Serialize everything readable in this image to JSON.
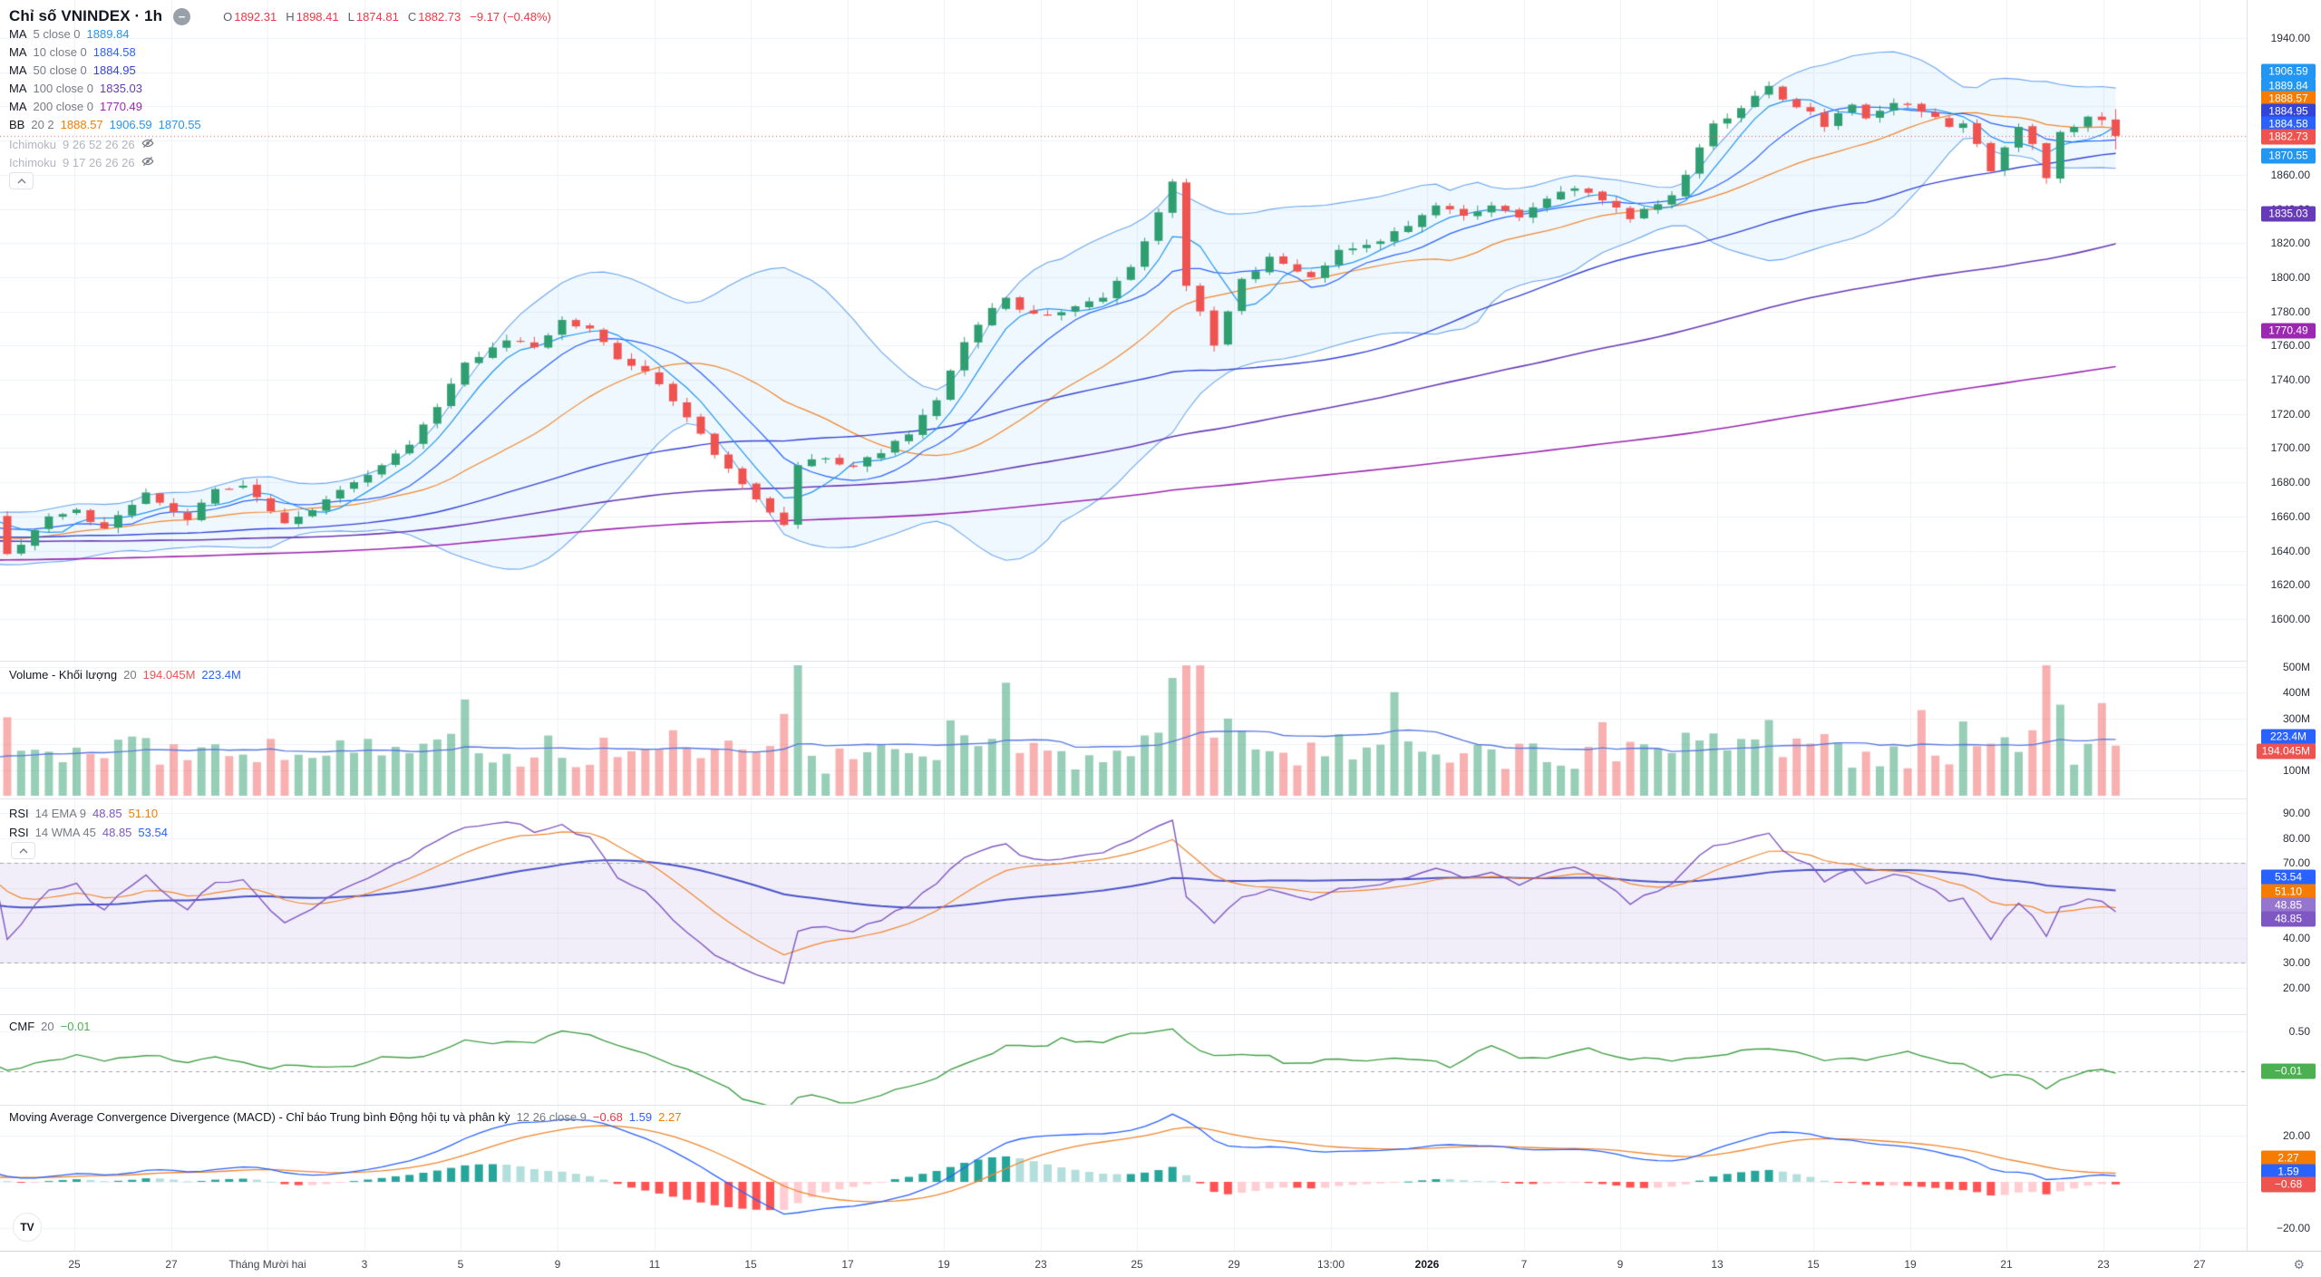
{
  "colors": {
    "up": "#2f9e70",
    "down": "#ef5350",
    "vol_up": "rgba(47,158,112,0.50)",
    "vol_down": "rgba(239,83,80,0.45)",
    "vol_ma": "#5a7be0",
    "bb_fill": "rgba(33,150,243,0.07)",
    "bb_line": "#6aa6f0",
    "bb_basis": "#f0862e",
    "ma5": "#2196f3",
    "ma10": "#2962ff",
    "ma50": "#3443d8",
    "ma100": "#673ab7",
    "ma200": "#9c27b0",
    "rsi": "#7e57c2",
    "rsi_ema": "#f0862e",
    "rsi_wma": "#4a54c8",
    "rsi_band": "rgba(126,87,194,0.10)",
    "band_dash": "#a3a6b1",
    "cmf": "#43a047",
    "macd": "#2962ff",
    "macd_sig": "#f0862e",
    "hist_up": "#26a69a",
    "hist_up2": "#b2dfdb",
    "hist_dn": "#ff5252",
    "hist_dn2": "#ffcdd2",
    "grid": "#eef1f7",
    "separator": "#e0e3eb",
    "text_dark": "#131722",
    "text_grey": "#787b86",
    "text_disabled": "#b2b5be",
    "value_red": "#f23645"
  },
  "header": {
    "title": "Chỉ số VNINDEX · 1h",
    "source_icon_glyph": "−",
    "ohlc": [
      {
        "label": "O",
        "value": "1892.31"
      },
      {
        "label": "H",
        "value": "1898.41"
      },
      {
        "label": "L",
        "value": "1874.81"
      },
      {
        "label": "C",
        "value": "1882.73"
      }
    ],
    "change": "−9.17 (−0.48%)"
  },
  "legend": {
    "rows": [
      {
        "name": "MA",
        "params": "5 close 0",
        "values": [
          {
            "text": "1889.84",
            "color": "#2196f3"
          }
        ]
      },
      {
        "name": "MA",
        "params": "10 close 0",
        "values": [
          {
            "text": "1884.58",
            "color": "#2962ff"
          }
        ]
      },
      {
        "name": "MA",
        "params": "50 close 0",
        "values": [
          {
            "text": "1884.95",
            "color": "#3443d8"
          }
        ]
      },
      {
        "name": "MA",
        "params": "100 close 0",
        "values": [
          {
            "text": "1835.03",
            "color": "#673ab7"
          }
        ]
      },
      {
        "name": "MA",
        "params": "200 close 0",
        "values": [
          {
            "text": "1770.49",
            "color": "#9c27b0"
          }
        ]
      },
      {
        "name": "BB",
        "params": "20 2",
        "values": [
          {
            "text": "1888.57",
            "color": "#f57c00"
          },
          {
            "text": "1906.59",
            "color": "#2196f3"
          },
          {
            "text": "1870.55",
            "color": "#2196f3"
          }
        ]
      },
      {
        "name": "Ichimoku",
        "params": "9 26 52 26 26",
        "values": [],
        "disabled": true,
        "eye_off": true
      },
      {
        "name": "Ichimoku",
        "params": "9 17 26 26 26",
        "values": [],
        "disabled": true,
        "eye_off": true
      }
    ]
  },
  "panes": {
    "volume": {
      "title": "Volume - Khối lượng",
      "params": "20",
      "values": [
        {
          "text": "194.045M",
          "color": "#ef5350"
        },
        {
          "text": "223.4M",
          "color": "#2962ff"
        }
      ]
    },
    "rsi": {
      "rows": [
        {
          "name": "RSI",
          "params": "14 EMA 9",
          "values": [
            {
              "text": "48.85",
              "color": "#7e57c2"
            },
            {
              "text": "51.10",
              "color": "#f57c00"
            }
          ]
        },
        {
          "name": "RSI",
          "params": "14 WMA 45",
          "values": [
            {
              "text": "48.85",
              "color": "#7e57c2"
            },
            {
              "text": "53.54",
              "color": "#2962ff"
            }
          ]
        }
      ]
    },
    "cmf": {
      "title": "CMF",
      "params": "20",
      "values": [
        {
          "text": "−0.01",
          "color": "#4caf50"
        }
      ]
    },
    "macd": {
      "title": "Moving Average Convergence Divergence (MACD) - Chỉ báo Trung bình Động hội tụ và phân kỳ",
      "params": "12 26 close 9",
      "values": [
        {
          "text": "−0.68",
          "color": "#f23645"
        },
        {
          "text": "1.59",
          "color": "#2962ff"
        },
        {
          "text": "2.27",
          "color": "#f57c00"
        }
      ]
    }
  },
  "price_scale": {
    "main": {
      "ticks": [
        [
          "1940.00",
          42
        ],
        [
          "1920.00",
          79.7
        ],
        [
          "1900.00",
          117.4
        ],
        [
          "1880.00",
          155.1
        ],
        [
          "1860.00",
          192.8
        ],
        [
          "1840.00",
          230.5
        ],
        [
          "1820.00",
          268.2
        ],
        [
          "1800.00",
          305.9
        ],
        [
          "1780.00",
          343.6
        ],
        [
          "1760.00",
          381.3
        ],
        [
          "1740.00",
          419.0
        ],
        [
          "1720.00",
          456.7
        ],
        [
          "1700.00",
          494.4
        ],
        [
          "1680.00",
          532.1
        ],
        [
          "1660.00",
          569.8
        ],
        [
          "1640.00",
          607.5
        ],
        [
          "1620.00",
          645.2
        ],
        [
          "1600.00",
          682.9
        ]
      ],
      "badges": [
        [
          "1906.59",
          "#2196f3",
          79
        ],
        [
          "1889.84",
          "#2196f3",
          95
        ],
        [
          "1888.57",
          "#f57c00",
          109
        ],
        [
          "1884.95",
          "#3443d8",
          123
        ],
        [
          "1884.58",
          "#2962ff",
          137
        ],
        [
          "1882.73",
          "#ef5350",
          151
        ],
        [
          "1870.55",
          "#2196f3",
          172
        ],
        [
          "1835.03",
          "#673ab7",
          236
        ],
        [
          "1770.49",
          "#9c27b0",
          365
        ]
      ]
    },
    "volume": {
      "ticks": [
        [
          "500M",
          735.5
        ],
        [
          "400M",
          764
        ],
        [
          "300M",
          792.5
        ],
        [
          "200M",
          821
        ],
        [
          "100M",
          849.5
        ]
      ],
      "badges": [
        [
          "223.4M",
          "#2962ff",
          813
        ],
        [
          "194.045M",
          "#ef5350",
          829
        ]
      ]
    },
    "rsi": {
      "ticks": [
        [
          "90.00",
          897
        ],
        [
          "80.00",
          924.6
        ],
        [
          "70.00",
          952.1
        ],
        [
          "60.00",
          979.7
        ],
        [
          "50.00",
          1007.3
        ],
        [
          "40.00",
          1034.9
        ],
        [
          "30.00",
          1062.4
        ],
        [
          "20.00",
          1090
        ]
      ],
      "badges": [
        [
          "53.54",
          "#2962ff",
          968
        ],
        [
          "51.10",
          "#f57c00",
          984
        ],
        [
          "48.85",
          "#9575cd",
          999
        ],
        [
          "48.85",
          "#7e57c2",
          1014
        ]
      ]
    },
    "cmf": {
      "ticks": [
        [
          "0.50",
          1138
        ],
        [
          "0.00",
          1182,
          "dashed"
        ]
      ],
      "badges": [
        [
          "−0.01",
          "#4caf50",
          1182
        ]
      ]
    },
    "macd": {
      "ticks": [
        [
          "20.00",
          1253
        ],
        [
          "0.00",
          1304
        ],
        [
          "−20.00",
          1355
        ]
      ],
      "badges": [
        [
          "2.27",
          "#f57c00",
          1278
        ],
        [
          "1.59",
          "#2962ff",
          1293
        ],
        [
          "−0.68",
          "#ef5350",
          1307
        ]
      ]
    }
  },
  "time_axis": {
    "gear_icon": "⚙"
  },
  "tv_logo_text": "TV",
  "chart_data": {
    "type": "candlestick",
    "symbol": "Chỉ số VNINDEX",
    "interval": "1h",
    "last_bar": {
      "open": 1892.31,
      "high": 1898.41,
      "low": 1874.81,
      "close": 1882.73,
      "change": -9.17,
      "change_pct": -0.48
    },
    "price_axis": {
      "visible_min": 1576,
      "visible_max": 1962,
      "tick_step": 20
    },
    "bars_visible": 153,
    "indicators": [
      {
        "name": "MA 5 close",
        "value": 1889.84
      },
      {
        "name": "MA 10 close",
        "value": 1884.58
      },
      {
        "name": "MA 50 close",
        "value": 1884.95
      },
      {
        "name": "MA 100 close",
        "value": 1835.03
      },
      {
        "name": "MA 200 close",
        "value": 1770.49
      },
      {
        "name": "BB 20 2",
        "basis": 1888.57,
        "upper": 1906.59,
        "lower": 1870.55
      },
      {
        "name": "Ichimoku 9 26 52 26 26",
        "hidden": true
      },
      {
        "name": "Ichimoku 9 17 26 26 26",
        "hidden": true
      },
      {
        "name": "Volume MA 20",
        "current_m": 194.045,
        "ma_m": 223.4
      },
      {
        "name": "RSI 14 EMA 9",
        "rsi": 48.85,
        "ema": 51.1
      },
      {
        "name": "RSI 14 WMA 45",
        "rsi": 48.85,
        "wma": 53.54
      },
      {
        "name": "CMF 20",
        "value": -0.01
      },
      {
        "name": "MACD 12 26 close 9",
        "hist": -0.68,
        "macd": 1.59,
        "signal": 2.27
      }
    ],
    "close_path_anchors": [
      [
        0,
        1638
      ],
      [
        2,
        1652
      ],
      [
        3,
        1660
      ],
      [
        5,
        1664
      ],
      [
        7,
        1653
      ],
      [
        10,
        1674
      ],
      [
        13,
        1658
      ],
      [
        15,
        1676
      ],
      [
        17,
        1678
      ],
      [
        19,
        1663
      ],
      [
        20,
        1656
      ],
      [
        23,
        1670
      ],
      [
        25,
        1680
      ],
      [
        27,
        1690
      ],
      [
        29,
        1702
      ],
      [
        31,
        1724
      ],
      [
        33,
        1750
      ],
      [
        36,
        1763
      ],
      [
        38,
        1759
      ],
      [
        40,
        1775
      ],
      [
        42,
        1770
      ],
      [
        44,
        1752
      ],
      [
        46,
        1745
      ],
      [
        49,
        1718
      ],
      [
        51,
        1696
      ],
      [
        52,
        1688
      ],
      [
        54,
        1670
      ],
      [
        56,
        1655
      ],
      [
        57,
        1690
      ],
      [
        59,
        1694
      ],
      [
        61,
        1689
      ],
      [
        63,
        1697
      ],
      [
        65,
        1708
      ],
      [
        67,
        1728
      ],
      [
        69,
        1762
      ],
      [
        71,
        1782
      ],
      [
        72,
        1788
      ],
      [
        73,
        1781
      ],
      [
        75,
        1778
      ],
      [
        77,
        1783
      ],
      [
        79,
        1788
      ],
      [
        81,
        1806
      ],
      [
        83,
        1838
      ],
      [
        84,
        1856
      ],
      [
        85,
        1795
      ],
      [
        86,
        1780
      ],
      [
        87,
        1760
      ],
      [
        88,
        1780
      ],
      [
        89,
        1799
      ],
      [
        91,
        1812
      ],
      [
        94,
        1800
      ],
      [
        96,
        1816
      ],
      [
        99,
        1821
      ],
      [
        101,
        1830
      ],
      [
        103,
        1842
      ],
      [
        105,
        1836
      ],
      [
        107,
        1842
      ],
      [
        109,
        1835
      ],
      [
        111,
        1846
      ],
      [
        113,
        1852
      ],
      [
        115,
        1845
      ],
      [
        117,
        1834
      ],
      [
        118,
        1840
      ],
      [
        120,
        1848
      ],
      [
        121,
        1860
      ],
      [
        122,
        1876
      ],
      [
        123,
        1890
      ],
      [
        125,
        1899
      ],
      [
        127,
        1912
      ],
      [
        128,
        1904
      ],
      [
        130,
        1897
      ],
      [
        131,
        1888
      ],
      [
        132,
        1896
      ],
      [
        133,
        1901
      ],
      [
        134,
        1893
      ],
      [
        136,
        1902
      ],
      [
        138,
        1897
      ],
      [
        140,
        1888
      ],
      [
        141,
        1890
      ],
      [
        142,
        1878
      ],
      [
        143,
        1862
      ],
      [
        144,
        1876
      ],
      [
        145,
        1888
      ],
      [
        146,
        1878
      ],
      [
        147,
        1858
      ],
      [
        148,
        1885
      ],
      [
        149,
        1888
      ],
      [
        150,
        1894
      ],
      [
        151,
        1892
      ],
      [
        152,
        1882.73
      ]
    ],
    "volume_spike_bars": [
      33,
      56,
      57,
      72,
      84,
      85,
      86,
      100,
      115,
      127,
      138,
      141,
      147,
      151
    ],
    "volume": {
      "current_m": 194.045,
      "ma20_m": 223.4,
      "axis_max_m": 519
    },
    "oscillators": {
      "rsi": 48.85,
      "rsi_ema9": 51.1,
      "rsi_wma45": 53.54,
      "cmf": -0.01,
      "macd": 1.59,
      "macd_signal": 2.27,
      "macd_hist": -0.68
    },
    "time_labels": [
      [
        "25",
        82
      ],
      [
        "27",
        189
      ],
      [
        "Tháng Mười hai",
        295
      ],
      [
        "3",
        402
      ],
      [
        "5",
        508
      ],
      [
        "9",
        615
      ],
      [
        "11",
        722
      ],
      [
        "15",
        828
      ],
      [
        "17",
        935
      ],
      [
        "19",
        1041
      ],
      [
        "23",
        1148
      ],
      [
        "25",
        1254
      ],
      [
        "29",
        1361
      ],
      [
        "13:00",
        1468
      ],
      [
        "2026",
        1574,
        "bold"
      ],
      [
        "7",
        1681
      ],
      [
        "9",
        1787
      ],
      [
        "13",
        1894
      ],
      [
        "15",
        2000
      ],
      [
        "19",
        2107
      ],
      [
        "21",
        2213
      ],
      [
        "23",
        2320
      ],
      [
        "27",
        2426
      ]
    ]
  }
}
